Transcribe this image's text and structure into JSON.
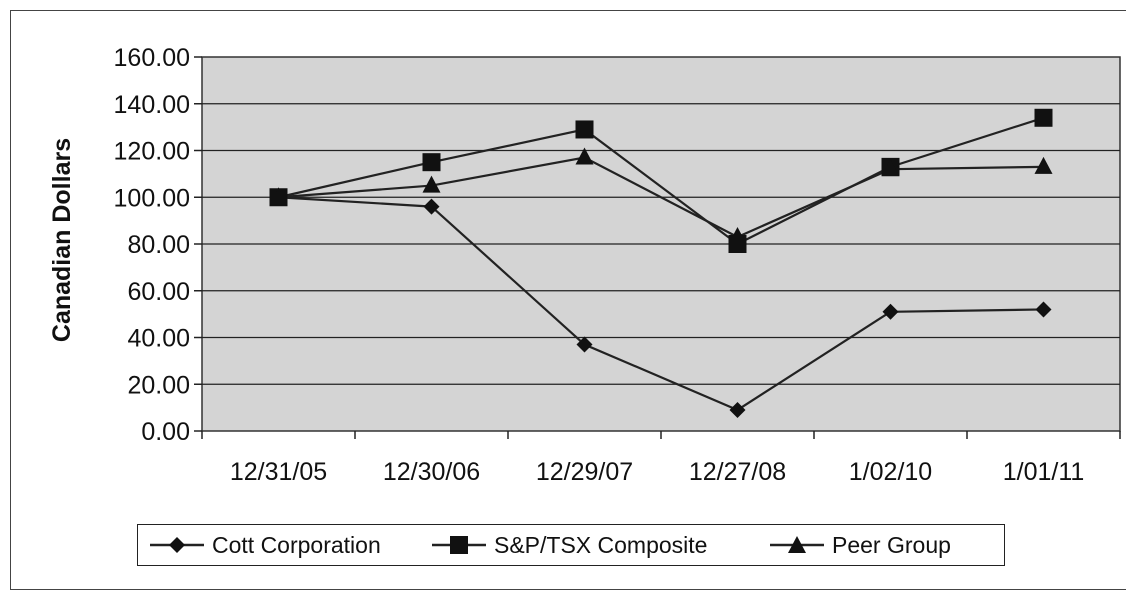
{
  "chart_data": {
    "type": "line",
    "title": "",
    "xlabel": "",
    "ylabel": "Canadian Dollars",
    "ylim": [
      0,
      160
    ],
    "yticks": [
      "0.00",
      "20.00",
      "40.00",
      "60.00",
      "80.00",
      "100.00",
      "120.00",
      "140.00",
      "160.00"
    ],
    "categories": [
      "12/31/05",
      "12/30/06",
      "12/29/07",
      "12/27/08",
      "1/02/10",
      "1/01/11"
    ],
    "grid": true,
    "legend_position": "bottom",
    "plot_background": "#d4d4d4",
    "line_color": "#222222",
    "series": [
      {
        "name": "Cott Corporation",
        "marker": "diamond",
        "values": [
          100,
          96,
          37,
          9,
          51,
          52
        ]
      },
      {
        "name": "S&P/TSX Composite",
        "marker": "square",
        "values": [
          100,
          115,
          129,
          80,
          113,
          134
        ]
      },
      {
        "name": "Peer Group",
        "marker": "triangle",
        "values": [
          100,
          105,
          117,
          83,
          112,
          113
        ]
      }
    ]
  }
}
